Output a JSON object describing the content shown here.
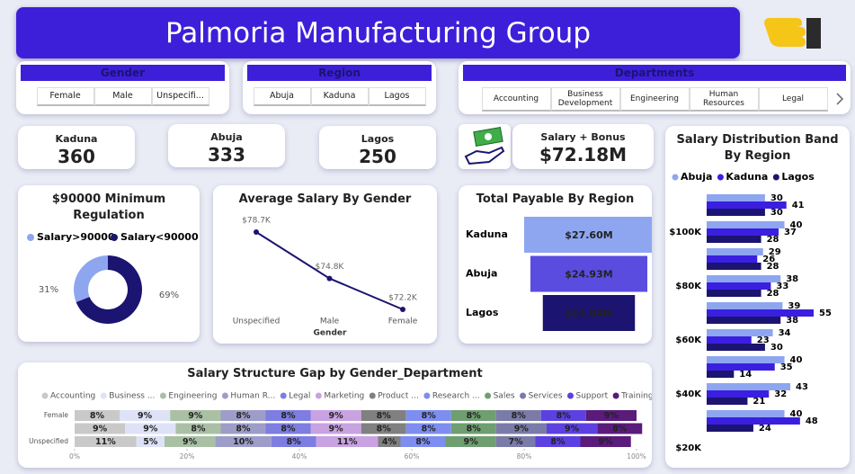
{
  "header": {
    "title": "Palmoria Manufacturing Group"
  },
  "slicers": [
    {
      "title": "Gender",
      "items": [
        "Female",
        "Male",
        "Unspecifi..."
      ]
    },
    {
      "title": "Region",
      "items": [
        "Abuja",
        "Kaduna",
        "Lagos"
      ]
    },
    {
      "title": "Departments",
      "items": [
        "Accounting",
        "Business Development",
        "Engineering",
        "Human Resources",
        "Legal"
      ]
    }
  ],
  "cards": [
    {
      "label": "Kaduna",
      "value": 360
    },
    {
      "label": "Abuja",
      "value": 333
    },
    {
      "label": "Lagos",
      "value": 250
    },
    {
      "label": "Salary + Bonus",
      "value": "$72.18M"
    }
  ],
  "chart_data": [
    {
      "type": "pie",
      "title": "$90000 Minimum Regulation",
      "categories": [
        "Salary>90000",
        "Salary<90000"
      ],
      "values": [
        31,
        69
      ],
      "value_labels": [
        "31%",
        "69%"
      ],
      "colors": [
        "#8ea6f0",
        "#1b1470"
      ]
    },
    {
      "type": "line",
      "title": "Average Salary By Gender",
      "x_label": "Gender",
      "categories": [
        "Unspecified",
        "Male",
        "Female"
      ],
      "values": [
        78700,
        74800,
        72200
      ],
      "value_labels": [
        "$78.7K",
        "$74.8K",
        "$72.2K"
      ],
      "color": "#1b1470"
    },
    {
      "type": "funnel",
      "title": "Total Payable By Region",
      "categories": [
        "Kaduna",
        "Abuja",
        "Lagos"
      ],
      "values": [
        27600000,
        24930000,
        19640000
      ],
      "value_labels": [
        "$27.60M",
        "$24.93M",
        "$19.64M"
      ],
      "colors": [
        "#8ea6f0",
        "#5b4ce0",
        "#1b1470"
      ]
    },
    {
      "type": "bar",
      "orientation": "horizontal",
      "title": "Salary Distribution Band By Region",
      "categories": [
        null,
        "$100K",
        null,
        "$80K",
        null,
        "$60K",
        null,
        "$40K",
        null,
        "$20K"
      ],
      "series": [
        {
          "name": "Abuja",
          "color": "#8ea6f0",
          "values": [
            30,
            40,
            29,
            38,
            39,
            34,
            40,
            43,
            40,
            null
          ]
        },
        {
          "name": "Kaduna",
          "color": "#3a1fe0",
          "values": [
            41,
            37,
            26,
            33,
            55,
            23,
            35,
            32,
            48,
            null
          ]
        },
        {
          "name": "Lagos",
          "color": "#1b1470",
          "values": [
            30,
            28,
            28,
            28,
            38,
            30,
            14,
            21,
            24,
            null
          ]
        }
      ]
    },
    {
      "type": "stacked_bar",
      "title": "Salary Structure Gap by Gender_Department",
      "categories": [
        "Female",
        null,
        "Unspecified"
      ],
      "xlim": [
        0,
        100
      ],
      "xticks": [
        {
          "value": 0,
          "label": "0%"
        },
        {
          "value": 20,
          "label": "20%"
        },
        {
          "value": 40,
          "label": "40%"
        },
        {
          "value": 60,
          "label": "60%"
        },
        {
          "value": 80,
          "label": "80%"
        },
        {
          "value": 100,
          "label": "100%"
        }
      ],
      "series": [
        {
          "name": "Accounting",
          "color": "#c9c9c9",
          "values": [
            8,
            9,
            11
          ],
          "value_labels": [
            "8%",
            "9%",
            "11%"
          ]
        },
        {
          "name": "Business ...",
          "color": "#dde2f7",
          "values": [
            9,
            9,
            5
          ],
          "value_labels": [
            "9%",
            "9%",
            "5%"
          ]
        },
        {
          "name": "Engineering",
          "color": "#a9c0a5",
          "values": [
            9,
            8,
            9
          ],
          "value_labels": [
            "9%",
            "8%",
            "9%"
          ]
        },
        {
          "name": "Human R...",
          "color": "#9d9dc9",
          "values": [
            8,
            8,
            10
          ],
          "value_labels": [
            "8%",
            "8%",
            "10%"
          ]
        },
        {
          "name": "Legal",
          "color": "#7d7de2",
          "values": [
            8,
            8,
            8
          ],
          "value_labels": [
            "8%",
            "8%",
            "8%"
          ]
        },
        {
          "name": "Marketing",
          "color": "#c9a2e2",
          "values": [
            9,
            9,
            11
          ],
          "value_labels": [
            "9%",
            "9%",
            "11%"
          ]
        },
        {
          "name": "Product ...",
          "color": "#808080",
          "values": [
            8,
            8,
            4
          ],
          "value_labels": [
            "8%",
            "8%",
            "4%"
          ]
        },
        {
          "name": "Research ...",
          "color": "#7d8ef0",
          "values": [
            8,
            8,
            8
          ],
          "value_labels": [
            "8%",
            "8%",
            "8%"
          ]
        },
        {
          "name": "Sales",
          "color": "#6f9e70",
          "values": [
            8,
            8,
            9
          ],
          "value_labels": [
            "8%",
            "8%",
            "9%"
          ]
        },
        {
          "name": "Services",
          "color": "#7b7ba9",
          "values": [
            8,
            9,
            7
          ],
          "value_labels": [
            "8%",
            "9%",
            "7%"
          ]
        },
        {
          "name": "Support",
          "color": "#5c40e2",
          "values": [
            8,
            9,
            8
          ],
          "value_labels": [
            "8%",
            "9%",
            "8%"
          ]
        },
        {
          "name": "Training",
          "color": "#5a1b7b",
          "values": [
            9,
            8,
            9
          ],
          "value_labels": [
            "9%",
            "8%",
            "9%"
          ]
        }
      ]
    }
  ]
}
